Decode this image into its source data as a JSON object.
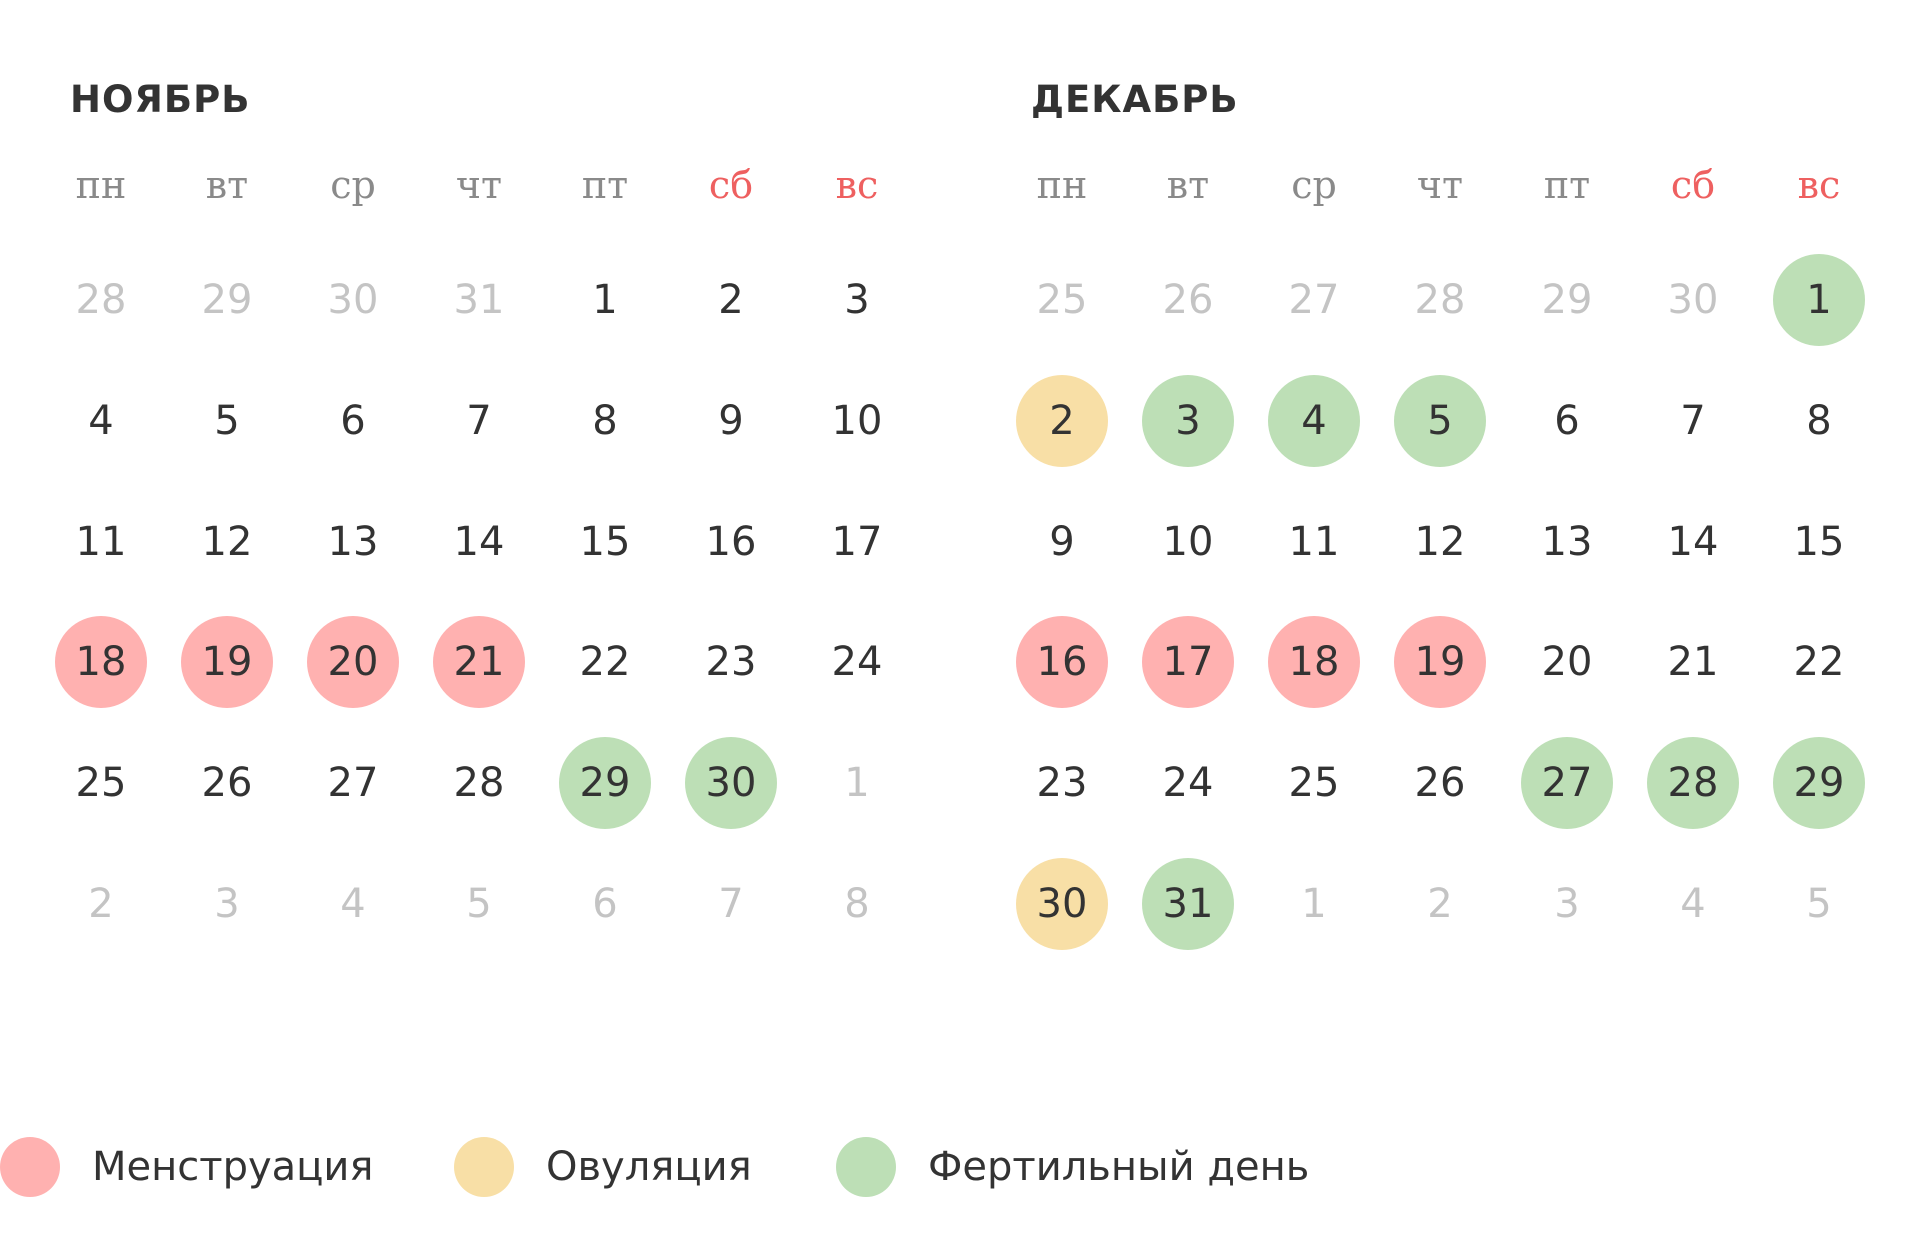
{
  "colors": {
    "menstruation": "#ffb1b0",
    "ovulation": "#f8dfa6",
    "fertile": "#bddfb6",
    "weekend": "#ee6060",
    "weekday": "#8a8a8a",
    "muted_day": "#c4c4c4",
    "text": "#333333"
  },
  "weekdays": [
    "пн",
    "вт",
    "ср",
    "чт",
    "пт",
    "сб",
    "вс"
  ],
  "months": [
    {
      "title": "НОЯБРЬ",
      "weeks": [
        [
          {
            "d": "28",
            "m": true
          },
          {
            "d": "29",
            "m": true
          },
          {
            "d": "30",
            "m": true
          },
          {
            "d": "31",
            "m": true
          },
          {
            "d": "1"
          },
          {
            "d": "2"
          },
          {
            "d": "3"
          }
        ],
        [
          {
            "d": "4"
          },
          {
            "d": "5"
          },
          {
            "d": "6"
          },
          {
            "d": "7"
          },
          {
            "d": "8"
          },
          {
            "d": "9"
          },
          {
            "d": "10"
          }
        ],
        [
          {
            "d": "11"
          },
          {
            "d": "12"
          },
          {
            "d": "13"
          },
          {
            "d": "14"
          },
          {
            "d": "15"
          },
          {
            "d": "16"
          },
          {
            "d": "17"
          }
        ],
        [
          {
            "d": "18",
            "t": "menstruation"
          },
          {
            "d": "19",
            "t": "menstruation"
          },
          {
            "d": "20",
            "t": "menstruation"
          },
          {
            "d": "21",
            "t": "menstruation"
          },
          {
            "d": "22"
          },
          {
            "d": "23"
          },
          {
            "d": "24"
          }
        ],
        [
          {
            "d": "25"
          },
          {
            "d": "26"
          },
          {
            "d": "27"
          },
          {
            "d": "28"
          },
          {
            "d": "29",
            "t": "fertile"
          },
          {
            "d": "30",
            "t": "fertile"
          },
          {
            "d": "1",
            "m": true
          }
        ],
        [
          {
            "d": "2",
            "m": true
          },
          {
            "d": "3",
            "m": true
          },
          {
            "d": "4",
            "m": true
          },
          {
            "d": "5",
            "m": true
          },
          {
            "d": "6",
            "m": true
          },
          {
            "d": "7",
            "m": true
          },
          {
            "d": "8",
            "m": true
          }
        ]
      ]
    },
    {
      "title": "ДЕКАБРЬ",
      "weeks": [
        [
          {
            "d": "25",
            "m": true
          },
          {
            "d": "26",
            "m": true
          },
          {
            "d": "27",
            "m": true
          },
          {
            "d": "28",
            "m": true
          },
          {
            "d": "29",
            "m": true
          },
          {
            "d": "30",
            "m": true
          },
          {
            "d": "1",
            "t": "fertile"
          }
        ],
        [
          {
            "d": "2",
            "t": "ovulation"
          },
          {
            "d": "3",
            "t": "fertile"
          },
          {
            "d": "4",
            "t": "fertile"
          },
          {
            "d": "5",
            "t": "fertile"
          },
          {
            "d": "6"
          },
          {
            "d": "7"
          },
          {
            "d": "8"
          }
        ],
        [
          {
            "d": "9"
          },
          {
            "d": "10"
          },
          {
            "d": "11"
          },
          {
            "d": "12"
          },
          {
            "d": "13"
          },
          {
            "d": "14"
          },
          {
            "d": "15"
          }
        ],
        [
          {
            "d": "16",
            "t": "menstruation"
          },
          {
            "d": "17",
            "t": "menstruation"
          },
          {
            "d": "18",
            "t": "menstruation"
          },
          {
            "d": "19",
            "t": "menstruation"
          },
          {
            "d": "20"
          },
          {
            "d": "21"
          },
          {
            "d": "22"
          }
        ],
        [
          {
            "d": "23"
          },
          {
            "d": "24"
          },
          {
            "d": "25"
          },
          {
            "d": "26"
          },
          {
            "d": "27",
            "t": "fertile"
          },
          {
            "d": "28",
            "t": "fertile"
          },
          {
            "d": "29",
            "t": "fertile"
          }
        ],
        [
          {
            "d": "30",
            "t": "ovulation"
          },
          {
            "d": "31",
            "t": "fertile"
          },
          {
            "d": "1",
            "m": true
          },
          {
            "d": "2",
            "m": true
          },
          {
            "d": "3",
            "m": true
          },
          {
            "d": "4",
            "m": true
          },
          {
            "d": "5",
            "m": true
          }
        ]
      ]
    }
  ],
  "legend": [
    {
      "key": "menstruation",
      "label": "Менструация"
    },
    {
      "key": "ovulation",
      "label": "Овуляция"
    },
    {
      "key": "fertile",
      "label": "Фертильный день"
    }
  ]
}
